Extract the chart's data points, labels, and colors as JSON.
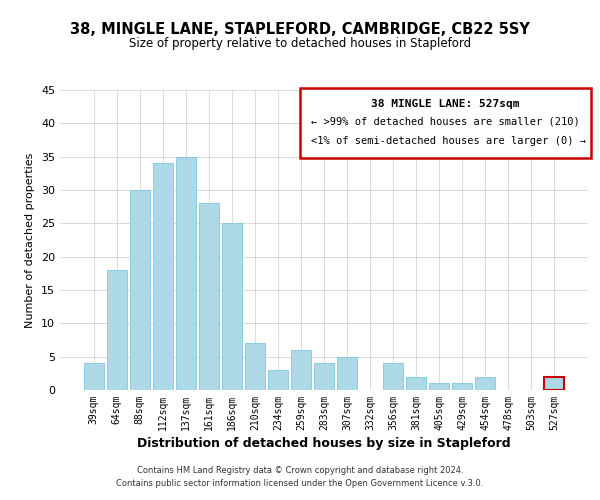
{
  "title": "38, MINGLE LANE, STAPLEFORD, CAMBRIDGE, CB22 5SY",
  "subtitle": "Size of property relative to detached houses in Stapleford",
  "xlabel": "Distribution of detached houses by size in Stapleford",
  "ylabel": "Number of detached properties",
  "bar_color": "#add8e6",
  "bar_edge_color": "#7ec8e3",
  "categories": [
    "39sqm",
    "64sqm",
    "88sqm",
    "112sqm",
    "137sqm",
    "161sqm",
    "186sqm",
    "210sqm",
    "234sqm",
    "259sqm",
    "283sqm",
    "307sqm",
    "332sqm",
    "356sqm",
    "381sqm",
    "405sqm",
    "429sqm",
    "454sqm",
    "478sqm",
    "503sqm",
    "527sqm"
  ],
  "values": [
    4,
    18,
    30,
    34,
    35,
    28,
    25,
    7,
    3,
    6,
    4,
    5,
    0,
    4,
    2,
    1,
    1,
    2,
    0,
    0,
    2
  ],
  "ylim": [
    0,
    45
  ],
  "yticks": [
    0,
    5,
    10,
    15,
    20,
    25,
    30,
    35,
    40,
    45
  ],
  "legend_title": "38 MINGLE LANE: 527sqm",
  "legend_line1": "← >99% of detached houses are smaller (210)",
  "legend_line2": "<1% of semi-detached houses are larger (0) →",
  "legend_box_color": "#ffffff",
  "legend_box_edge_color": "#cc0000",
  "highlight_bar_index": 20,
  "footer1": "Contains HM Land Registry data © Crown copyright and database right 2024.",
  "footer2": "Contains public sector information licensed under the Open Government Licence v.3.0."
}
